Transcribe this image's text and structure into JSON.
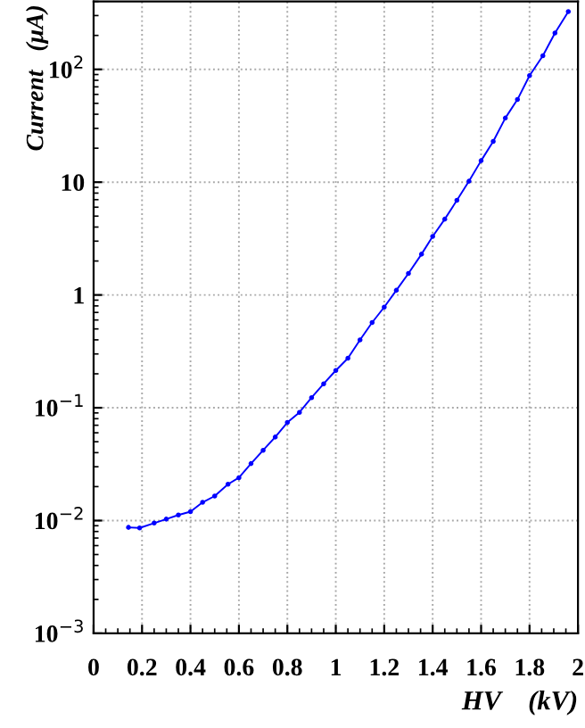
{
  "chart_data": {
    "type": "line",
    "xlabel": "HV    (kV)",
    "ylabel": "Current   (μA)",
    "x": [
      0.144,
      0.19,
      0.25,
      0.3,
      0.35,
      0.4,
      0.45,
      0.5,
      0.555,
      0.6,
      0.65,
      0.7,
      0.75,
      0.8,
      0.85,
      0.9,
      0.95,
      1.0,
      1.05,
      1.1,
      1.15,
      1.2,
      1.25,
      1.3,
      1.354,
      1.4,
      1.45,
      1.5,
      1.55,
      1.6,
      1.65,
      1.7,
      1.75,
      1.8,
      1.855,
      1.905,
      1.96
    ],
    "series": [
      {
        "color": "#0000ff",
        "values": [
          0.0087,
          0.0086,
          0.0095,
          0.0103,
          0.0112,
          0.012,
          0.0145,
          0.0165,
          0.021,
          0.024,
          0.032,
          0.042,
          0.055,
          0.074,
          0.091,
          0.123,
          0.163,
          0.214,
          0.275,
          0.4,
          0.57,
          0.78,
          1.1,
          1.55,
          2.3,
          3.3,
          4.7,
          6.9,
          10.2,
          15.5,
          23,
          37,
          54,
          88,
          132,
          210,
          325
        ]
      }
    ],
    "log": "y",
    "xlim": [
      0,
      2
    ],
    "ylim": [
      0.001,
      400
    ],
    "xticks": [
      0,
      0.2,
      0.4,
      0.6,
      0.8,
      1,
      1.2,
      1.4,
      1.6,
      1.8,
      2
    ],
    "yticks": [
      {
        "value": 0.001,
        "label": "10$^{−3}$"
      },
      {
        "value": 0.01,
        "label": "10$^{−2}$"
      },
      {
        "value": 0.1,
        "label": "10$^{−1}$"
      },
      1,
      10,
      {
        "value": 100,
        "label": "10$^{2}$"
      }
    ],
    "grid": true,
    "marker": "circle",
    "line_style": "solid"
  }
}
